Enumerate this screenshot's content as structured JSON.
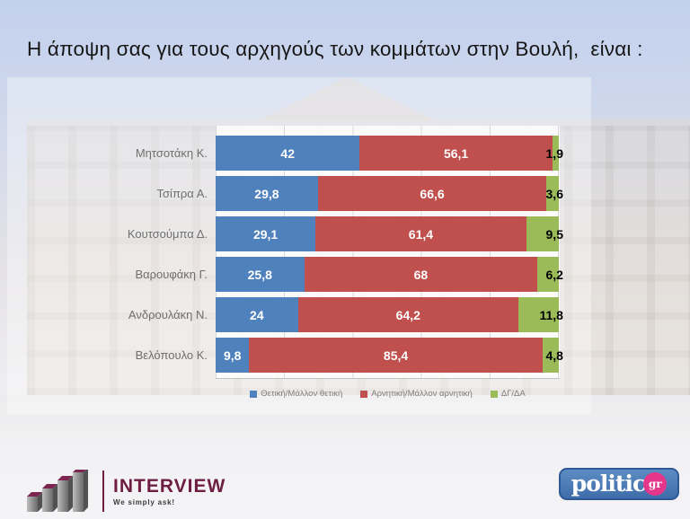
{
  "title": "Η άποψη σας για τους αρχηγούς των κομμάτων στην Βουλή,  είναι :",
  "chart_data": {
    "type": "bar",
    "orientation": "horizontal",
    "stacked": true,
    "categories": [
      "Μητσοτάκη Κ.",
      "Τσίπρα Α.",
      "Κουτσούμπα Δ.",
      "Βαρουφάκη Γ.",
      "Ανδρουλάκη Ν.",
      "Βελόπουλο Κ."
    ],
    "series": [
      {
        "name": "Θετική/Μάλλον θετική",
        "color": "#4F81BD",
        "values": [
          42,
          29.8,
          29.1,
          25.8,
          24,
          9.8
        ],
        "labels": [
          "42",
          "29,8",
          "29,1",
          "25,8",
          "24",
          "9,8"
        ],
        "label_color": "#ffffff",
        "label_outside": false
      },
      {
        "name": "Αρνητική/Μάλλον αρνητική",
        "color": "#C0504D",
        "values": [
          56.1,
          66.6,
          61.4,
          68,
          64.2,
          85.4
        ],
        "labels": [
          "56,1",
          "66,6",
          "61,4",
          "68",
          "64,2",
          "85,4"
        ],
        "label_color": "#ffffff",
        "label_outside": false
      },
      {
        "name": "ΔΓ/ΔΑ",
        "color": "#9BBB59",
        "values": [
          1.9,
          3.6,
          9.5,
          6.2,
          11.8,
          4.8
        ],
        "labels": [
          "1,9",
          "3,6",
          "9,5",
          "6,2",
          "11,8",
          "4,8"
        ],
        "label_color": "#000000",
        "label_outside": true
      }
    ],
    "xlim": [
      0,
      100
    ],
    "grid": "vertical-light",
    "legend_position": "bottom"
  },
  "footer": {
    "interview": {
      "name": "INTERVIEW",
      "tagline": "We simply ask!",
      "icon": "bar-chart-3d-icon",
      "accent": "#6E1E42"
    },
    "politic": {
      "text": "politic",
      "suffix": "gr",
      "bg": "#4472AE",
      "badge": "#E5368C"
    }
  }
}
